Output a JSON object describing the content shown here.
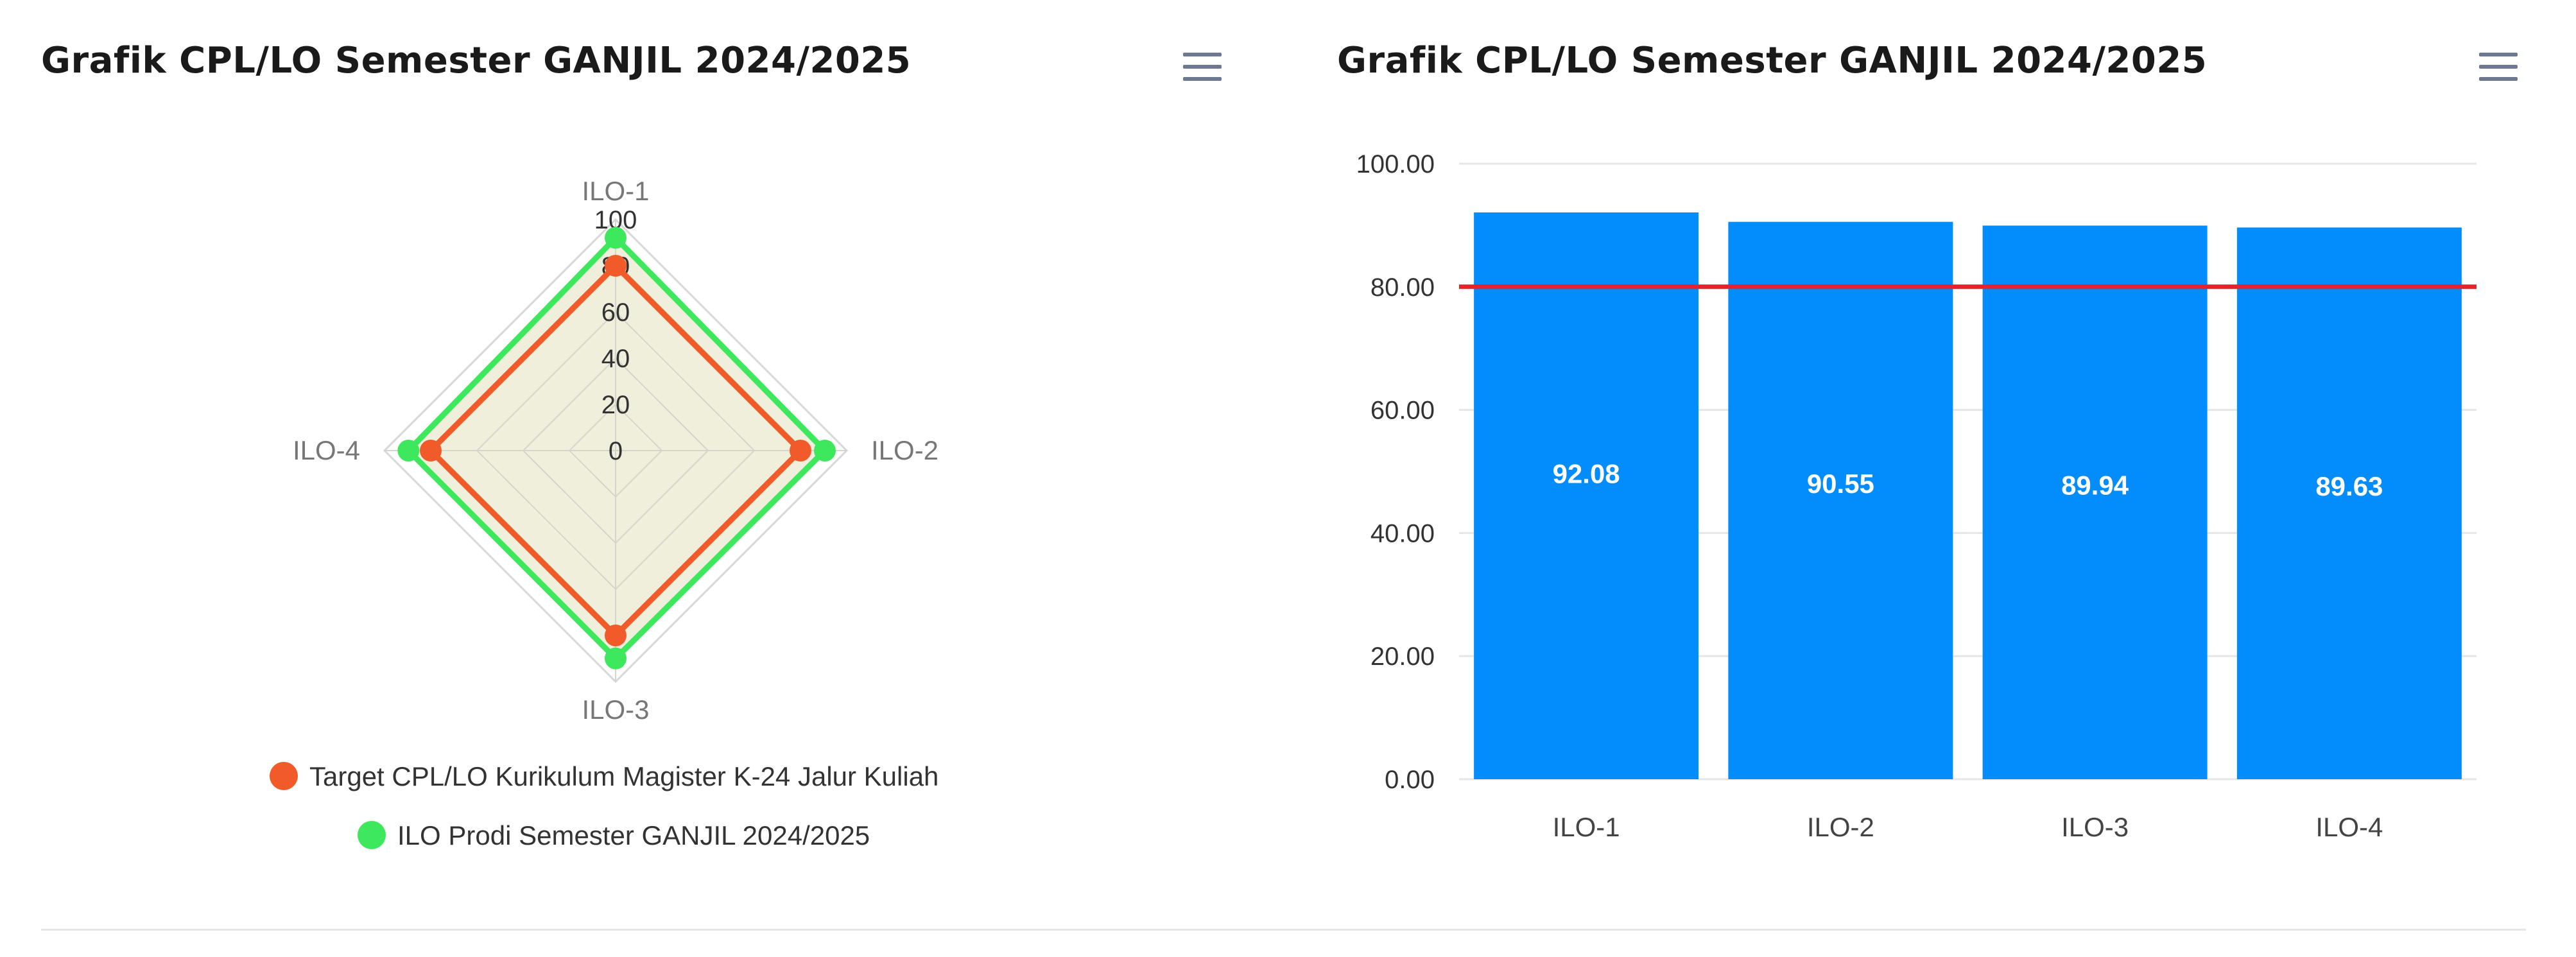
{
  "left_panel": {
    "title": "Grafik CPL/LO Semester GANJIL 2024/2025",
    "menu_icon": "hamburger-icon"
  },
  "right_panel": {
    "title": "Grafik CPL/LO Semester GANJIL 2024/2025",
    "menu_icon": "hamburger-icon"
  },
  "chart_data": [
    {
      "type": "radar",
      "title": "Grafik CPL/LO Semester GANJIL 2024/2025",
      "categories": [
        "ILO-1",
        "ILO-2",
        "ILO-3",
        "ILO-4"
      ],
      "radial_ticks": [
        "0",
        "20",
        "40",
        "60",
        "80",
        "100"
      ],
      "rlim": [
        0,
        100
      ],
      "series": [
        {
          "name": "Target CPL/LO Kurikulum Magister K-24 Jalur Kuliah",
          "values": [
            80,
            80,
            80,
            80
          ],
          "color": "#f15a29"
        },
        {
          "name": "ILO Prodi Semester GANJIL 2024/2025",
          "values": [
            92.08,
            90.55,
            89.94,
            89.63
          ],
          "color": "#3ee85c"
        }
      ],
      "legend": "bottom"
    },
    {
      "type": "bar",
      "title": "Grafik CPL/LO Semester GANJIL 2024/2025",
      "categories": [
        "ILO-1",
        "ILO-2",
        "ILO-3",
        "ILO-4"
      ],
      "values": [
        92.08,
        90.55,
        89.94,
        89.63
      ],
      "data_labels": [
        "92.08",
        "90.55",
        "89.94",
        "89.63"
      ],
      "y_ticks": [
        "0.00",
        "20.00",
        "40.00",
        "60.00",
        "80.00",
        "100.00"
      ],
      "ylim": [
        0,
        100
      ],
      "target_line": 80,
      "bar_color": "#038cfc",
      "target_color": "#e8212e",
      "grid": true
    }
  ]
}
